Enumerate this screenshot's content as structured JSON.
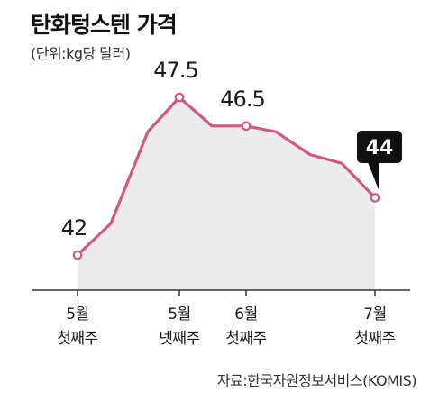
{
  "chart_data": {
    "type": "area",
    "title": "탄화텅스텐 가격",
    "subtitle": "(단위:kg당 달러)",
    "source": "자료:한국자원정보서비스(KOMIS)",
    "values": [
      42,
      43.1,
      46.3,
      47.5,
      46.5,
      46.5,
      46.3,
      45.5,
      45.2,
      44
    ],
    "ylim": [
      40,
      49
    ],
    "ticks": [
      {
        "index": 0,
        "line1": "5월",
        "line2": "첫째주"
      },
      {
        "index": 3,
        "line1": "5월",
        "line2": "넷째주"
      },
      {
        "index": 5,
        "line1": "6월",
        "line2": "첫째주"
      },
      {
        "index": 9,
        "line1": "7월",
        "line2": "첫째주"
      }
    ],
    "labeled_points": [
      {
        "index": 0,
        "text": "42"
      },
      {
        "index": 3,
        "text": "47.5"
      },
      {
        "index": 5,
        "text": "46.5"
      }
    ],
    "callout": {
      "index": 9,
      "text": "44"
    },
    "colors": {
      "line": "#d4577f",
      "area": "#ececec",
      "callout_bg": "#111111",
      "callout_text": "#ffffff",
      "axis": "#333333"
    },
    "grid": false,
    "legend": "none"
  }
}
